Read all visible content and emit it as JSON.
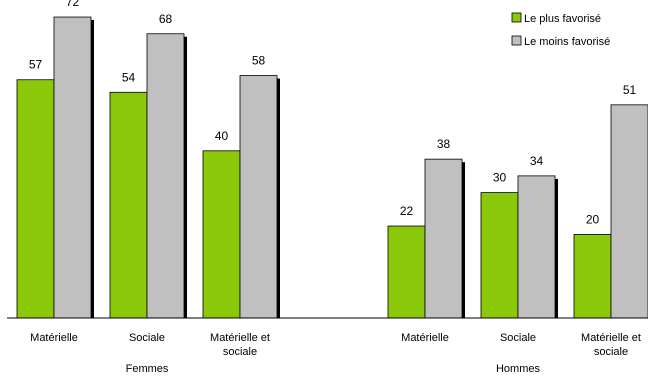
{
  "chart_data": {
    "type": "bar",
    "title": "",
    "xlabel": "",
    "ylabel": "",
    "ylim": [
      0,
      75
    ],
    "grid": false,
    "legend_position": "top-right",
    "groups": [
      {
        "label": "Femmes",
        "categories": [
          {
            "lines": [
              "Matérielle"
            ]
          },
          {
            "lines": [
              "Sociale"
            ]
          },
          {
            "lines": [
              "Matérielle et",
              "sociale"
            ]
          }
        ]
      },
      {
        "label": "Hommes",
        "categories": [
          {
            "lines": [
              "Matérielle"
            ]
          },
          {
            "lines": [
              "Sociale"
            ]
          },
          {
            "lines": [
              "Matérielle et",
              "sociale"
            ]
          }
        ]
      }
    ],
    "series": [
      {
        "name": "Le plus favorisé",
        "color": "#8cc80a",
        "values": [
          57,
          54,
          40,
          22,
          30,
          20
        ]
      },
      {
        "name": "Le moins favorisé",
        "color": "#c0c0c0",
        "values": [
          72,
          68,
          58,
          38,
          34,
          51
        ]
      }
    ]
  }
}
